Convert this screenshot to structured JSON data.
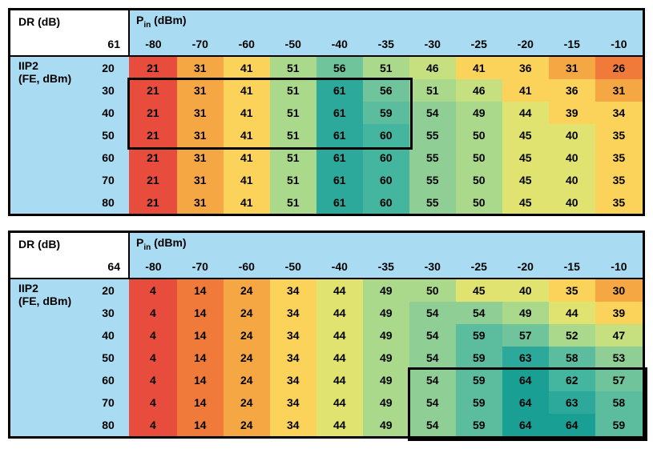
{
  "labels": {
    "dr": "DR (dB)",
    "pin": "P_in (dBm)",
    "iip2": "IIP2",
    "fe": "(FE, dBm)"
  },
  "pin_cols": [
    -80,
    -70,
    -60,
    -50,
    -40,
    -35,
    -30,
    -25,
    -20,
    -15,
    -10
  ],
  "iip2_rows": [
    20,
    30,
    40,
    50,
    60,
    70,
    80
  ],
  "tables": [
    {
      "corner_val": 61,
      "grid": [
        [
          21,
          31,
          41,
          51,
          56,
          51,
          46,
          41,
          36,
          31,
          26
        ],
        [
          21,
          31,
          41,
          51,
          61,
          56,
          51,
          46,
          41,
          36,
          31
        ],
        [
          21,
          31,
          41,
          51,
          61,
          59,
          54,
          49,
          44,
          39,
          34
        ],
        [
          21,
          31,
          41,
          51,
          61,
          60,
          55,
          50,
          45,
          40,
          35
        ],
        [
          21,
          31,
          41,
          51,
          61,
          60,
          55,
          50,
          45,
          40,
          35
        ],
        [
          21,
          31,
          41,
          51,
          61,
          60,
          55,
          50,
          45,
          40,
          35
        ],
        [
          21,
          31,
          41,
          51,
          61,
          60,
          55,
          50,
          45,
          40,
          35
        ]
      ],
      "highlight": {
        "row_start": 1,
        "row_end": 3,
        "col_start": 0,
        "col_end": 5
      }
    },
    {
      "corner_val": 64,
      "grid": [
        [
          4,
          14,
          24,
          34,
          44,
          49,
          50,
          45,
          40,
          35,
          30
        ],
        [
          4,
          14,
          24,
          34,
          44,
          49,
          54,
          54,
          49,
          44,
          39
        ],
        [
          4,
          14,
          24,
          34,
          44,
          49,
          54,
          59,
          57,
          52,
          47
        ],
        [
          4,
          14,
          24,
          34,
          44,
          49,
          54,
          59,
          63,
          58,
          53
        ],
        [
          4,
          14,
          24,
          34,
          44,
          49,
          54,
          59,
          64,
          62,
          57
        ],
        [
          4,
          14,
          24,
          34,
          44,
          49,
          54,
          59,
          64,
          63,
          58
        ],
        [
          4,
          14,
          24,
          34,
          44,
          49,
          54,
          59,
          64,
          64,
          59
        ]
      ],
      "highlight": {
        "row_start": 4,
        "row_end": 6,
        "col_start": 6,
        "col_end": 10
      }
    }
  ],
  "style": {
    "cell_font_size": 14,
    "cell_font_weight": "bold",
    "border_color": "#000000",
    "header_blue": "#a9dcf2",
    "header_white": "#ffffff",
    "heat_palette": {
      "4": "#e84c3d",
      "14": "#ef7a3a",
      "21": "#e84c3d",
      "24": "#f4a742",
      "26": "#ef7a3a",
      "30": "#f4a742",
      "31": "#f4a742",
      "34": "#fbd25a",
      "35": "#fbd25a",
      "36": "#fbd25a",
      "39": "#fbd25a",
      "40": "#e0e36f",
      "41": "#fbd25a",
      "44": "#e0e36f",
      "45": "#e0e36f",
      "46": "#c6e080",
      "47": "#c6e080",
      "49": "#aad98b",
      "50": "#aad98b",
      "51": "#aad98b",
      "52": "#aad98b",
      "53": "#8fcf95",
      "54": "#8fcf95",
      "55": "#8fcf95",
      "56": "#6fc49c",
      "57": "#6fc49c",
      "58": "#5bbd9e",
      "59": "#5bbd9e",
      "60": "#44b59e",
      "61": "#2ca99a",
      "62": "#44b59e",
      "63": "#2ca99a",
      "64": "#1a9f95"
    }
  }
}
